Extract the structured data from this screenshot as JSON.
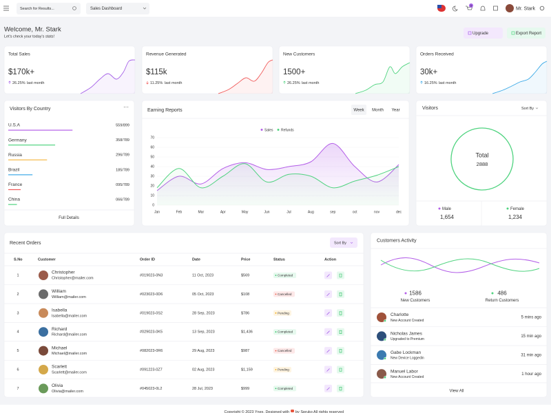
{
  "header": {
    "search_placeholder": "Search for Results...",
    "dashboard_select": "Sales Dashboard",
    "cart_badge": "5",
    "user_name": "Mr. Stark"
  },
  "welcome": {
    "title": "Welcome, Mr. Stark",
    "subtitle": "Let's check your today's stats!",
    "buttons": [
      "Upgrade",
      "Export Report"
    ]
  },
  "stats": [
    {
      "title": "Total Sales",
      "value": "$170k+",
      "change": "26.25%",
      "period": "last month",
      "color": "#a560e8"
    },
    {
      "title": "Revenue Generated",
      "value": "$115k",
      "change": "11.25%",
      "period": "last month",
      "color": "#f05a5a"
    },
    {
      "title": "New Customers",
      "value": "1500+",
      "change": "26.25%",
      "period": "last month",
      "color": "#4fd37f"
    },
    {
      "title": "Orders Received",
      "value": "30k+",
      "change": "16.25%",
      "period": "last month",
      "color": "#3ba9e6"
    }
  ],
  "visitors_by_country": {
    "title": "Visitors By Country",
    "rows": [
      {
        "country": "U.S.A",
        "value": 559,
        "total": 899,
        "label": "559/899",
        "color": "#b35ee8"
      },
      {
        "country": "Germany",
        "value": 358,
        "total": 789,
        "label": "358/789",
        "color": "#4fd37f"
      },
      {
        "country": "Russia",
        "value": 296,
        "total": 789,
        "label": "296/789",
        "color": "#f5b849"
      },
      {
        "country": "Brazil",
        "value": 185,
        "total": 789,
        "label": "185/789",
        "color": "#3ba9e6"
      },
      {
        "country": "France",
        "value": 95,
        "total": 789,
        "label": "095/789",
        "color": "#f05a5a"
      },
      {
        "country": "China",
        "value": 66,
        "total": 789,
        "label": "066/789",
        "color": "#4fd37f"
      }
    ],
    "link": "Full Details"
  },
  "chart_data": {
    "type": "line",
    "title": "Earning Reports",
    "tabs": [
      "Week",
      "Month",
      "Year"
    ],
    "categories": [
      "Jan",
      "Feb",
      "Mar",
      "Apr",
      "May",
      "Jun",
      "Jul",
      "Aug",
      "sep",
      "oct",
      "nov",
      "dec"
    ],
    "series": [
      {
        "name": "Sales",
        "color": "#b35ee8",
        "values": [
          15,
          30,
          22,
          38,
          44,
          37,
          40,
          45,
          64,
          40,
          24,
          42
        ]
      },
      {
        "name": "Refunds",
        "color": "#4fd37f",
        "values": [
          18,
          38,
          18,
          30,
          43,
          24,
          32,
          30,
          18,
          25,
          31,
          40
        ]
      }
    ],
    "ylim": [
      0,
      70
    ],
    "yticks": [
      0,
      10,
      20,
      30,
      40,
      50,
      60,
      70
    ],
    "grid": true,
    "legend": "top"
  },
  "visitors": {
    "title": "Visitors",
    "sort": "Sort By",
    "total_label": "Total",
    "total": 2888,
    "ring_color": "#4fd37f",
    "segments": [
      {
        "name": "Male",
        "value": 1654,
        "value_label": "1,654",
        "color": "#b35ee8"
      },
      {
        "name": "Female",
        "value": 1234,
        "value_label": "1,234",
        "color": "#4fd37f"
      }
    ]
  },
  "orders": {
    "title": "Recent Orders",
    "sort": "Sort By",
    "columns": [
      "S.No",
      "Customer",
      "Order ID",
      "Date",
      "Price",
      "Status",
      "Action"
    ],
    "rows": [
      {
        "no": "1",
        "name": "Christopher",
        "email": "Christopher@mailer.com",
        "order_id": "#019023-0N3",
        "date": "11 Oct, 2023",
        "price": "$569",
        "status": "Completed"
      },
      {
        "no": "2",
        "name": "William",
        "email": "William@mailer.com",
        "order_id": "#023023-0D6",
        "date": "05 Oct, 2023",
        "price": "$108",
        "status": "Cancelled"
      },
      {
        "no": "3",
        "name": "Isabella",
        "email": "Isabella@mailer.com",
        "order_id": "#019023-0S2",
        "date": "28 Sep, 2023",
        "price": "$786",
        "status": "Pending"
      },
      {
        "no": "4",
        "name": "Richard",
        "email": "Richard@mailer.com",
        "order_id": "#029023-0K5",
        "date": "13 Sep, 2023",
        "price": "$1,436",
        "status": "Completed"
      },
      {
        "no": "5",
        "name": "Michael",
        "email": "Michael@mailer.com",
        "order_id": "#082023-0R6",
        "date": "29 Aug, 2023",
        "price": "$987",
        "status": "Cancelled"
      },
      {
        "no": "6",
        "name": "Scarlett",
        "email": "Scarlett@mailer.com",
        "order_id": "#091223-0Z7",
        "date": "02 Aug, 2023",
        "price": "$1,159",
        "status": "Pending"
      },
      {
        "no": "7",
        "name": "Olivia",
        "email": "Olivia@mailer.com",
        "order_id": "#045023-0L2",
        "date": "28 Jul, 2023",
        "price": "$999",
        "status": "Completed"
      }
    ]
  },
  "activity": {
    "title": "Customers Activity",
    "stats": [
      {
        "value": "1586",
        "label": "New Customers",
        "color": "#b35ee8"
      },
      {
        "value": "486",
        "label": "Return Customers",
        "color": "#4fd37f"
      }
    ],
    "items": [
      {
        "name": "Charlotte",
        "action": "New Account Created",
        "time": "5 mins ago"
      },
      {
        "name": "Nicholas James",
        "action": "Upgraded to Premium",
        "time": "15 min ago"
      },
      {
        "name": "Gabe Lockman",
        "action": "New Device Loggedin",
        "time": "31 min ago"
      },
      {
        "name": "Manuel Labor",
        "action": "New Account Created",
        "time": "1 hour ago"
      }
    ],
    "link": "View All"
  },
  "footer": {
    "before": "Copyright © 2023 Ynex. Designed with",
    "after": "by Spruko All rights reserved"
  }
}
